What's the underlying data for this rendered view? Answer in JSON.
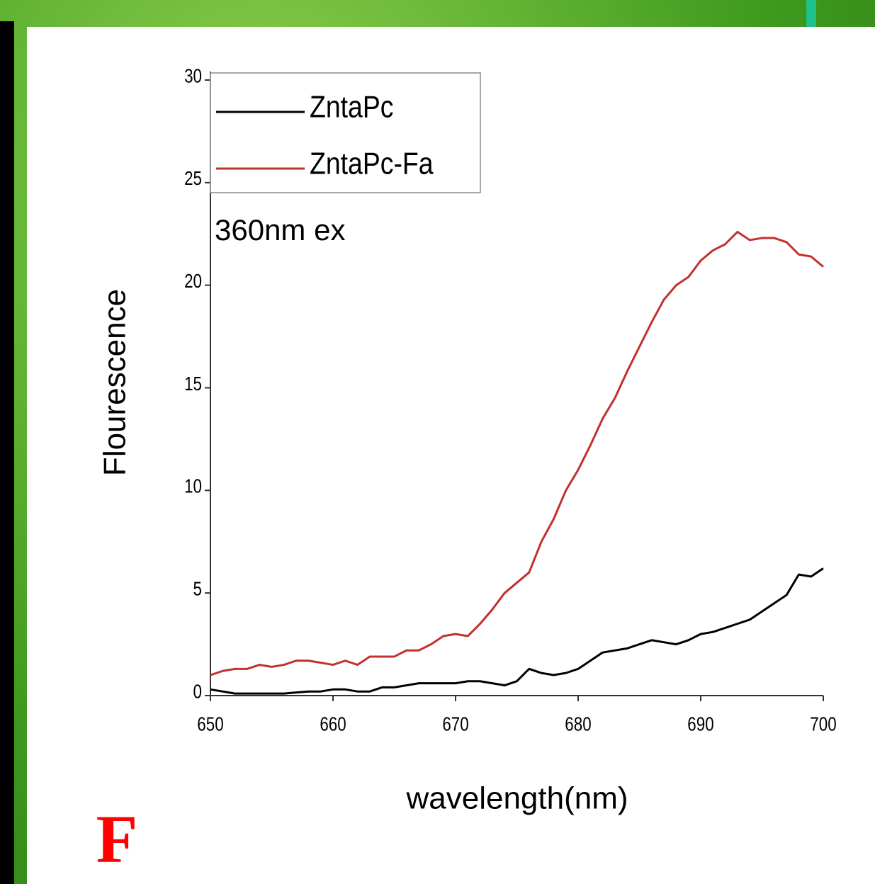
{
  "chart_data": {
    "type": "line",
    "x_label": "wavelength(nm)",
    "y_label": "Flourescence",
    "annotations": [
      "360nm ex"
    ],
    "x": [
      650,
      651,
      652,
      653,
      654,
      655,
      656,
      657,
      658,
      659,
      660,
      661,
      662,
      663,
      664,
      665,
      666,
      667,
      668,
      669,
      670,
      671,
      672,
      673,
      674,
      675,
      676,
      677,
      678,
      679,
      680,
      681,
      682,
      683,
      684,
      685,
      686,
      687,
      688,
      689,
      690,
      691,
      692,
      693,
      694,
      695,
      696,
      697,
      698,
      699,
      700
    ],
    "series": [
      {
        "name": "ZntaPc",
        "color": "#000000",
        "values": [
          0.3,
          0.2,
          0.1,
          0.1,
          0.1,
          0.1,
          0.1,
          0.15,
          0.2,
          0.2,
          0.3,
          0.3,
          0.2,
          0.2,
          0.4,
          0.4,
          0.5,
          0.6,
          0.6,
          0.6,
          0.6,
          0.7,
          0.7,
          0.6,
          0.5,
          0.7,
          1.3,
          1.1,
          1.0,
          1.1,
          1.3,
          1.7,
          2.1,
          2.2,
          2.3,
          2.5,
          2.7,
          2.6,
          2.5,
          2.7,
          3.0,
          3.1,
          3.3,
          3.5,
          3.7,
          4.1,
          4.5,
          4.9,
          5.9,
          5.8,
          6.2
        ]
      },
      {
        "name": "ZntaPc-Fa",
        "color": "#c0312f",
        "values": [
          1.0,
          1.2,
          1.3,
          1.3,
          1.5,
          1.4,
          1.5,
          1.7,
          1.7,
          1.6,
          1.5,
          1.7,
          1.5,
          1.9,
          1.9,
          1.9,
          2.2,
          2.2,
          2.5,
          2.9,
          3.0,
          2.9,
          3.5,
          4.2,
          5.0,
          5.5,
          6.0,
          7.5,
          8.6,
          10.0,
          11.0,
          12.2,
          13.5,
          14.5,
          15.8,
          17.0,
          18.2,
          19.3,
          20.0,
          20.4,
          21.2,
          21.7,
          22.0,
          22.6,
          22.2,
          22.3,
          22.3,
          22.1,
          21.5,
          21.4,
          20.9
        ]
      }
    ],
    "xlim": [
      650,
      700
    ],
    "xticks": [
      650,
      660,
      670,
      680,
      690,
      700
    ],
    "ylim": [
      0,
      30
    ],
    "yticks": [
      0,
      5,
      10,
      15,
      20,
      25,
      30
    ],
    "legend": "upper left"
  },
  "panel_label": "F"
}
